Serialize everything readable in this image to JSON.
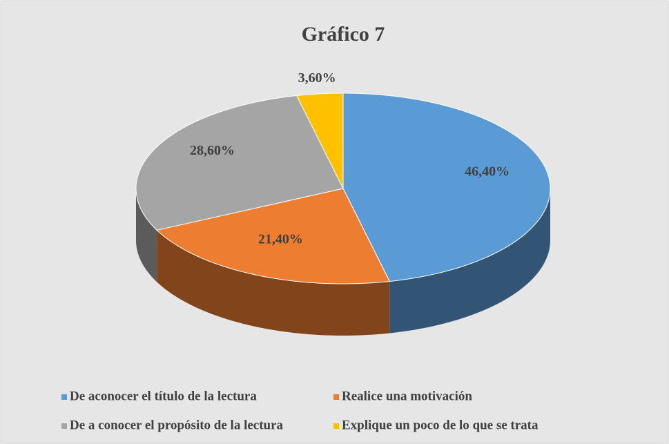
{
  "chart_data": {
    "type": "pie",
    "title": "Gráfico 7",
    "categories": [
      "De aconocer el título de la lectura",
      "Realice una motivación",
      "De a conocer el propósito de la lectura",
      "Explique un poco de lo que se trata"
    ],
    "values": [
      46.4,
      21.4,
      28.6,
      3.6
    ],
    "value_labels": [
      "46,40%",
      "21,40%",
      "28,60%",
      "3,60%"
    ],
    "colors": [
      "#5b9bd5",
      "#ed7d31",
      "#a5a5a5",
      "#ffc000"
    ]
  }
}
